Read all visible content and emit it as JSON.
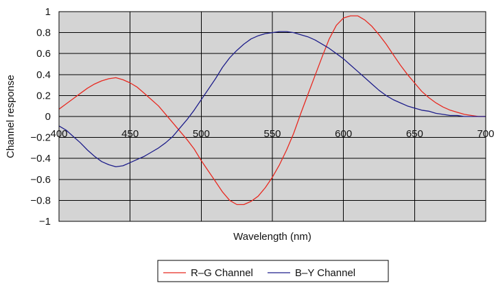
{
  "chart_data": {
    "type": "line",
    "xlabel": "Wavelength (nm)",
    "ylabel": "Channel response",
    "xlim": [
      400,
      700
    ],
    "ylim": [
      -1,
      1
    ],
    "x_ticks": [
      400,
      450,
      500,
      550,
      600,
      650,
      700
    ],
    "y_ticks": [
      1,
      0.8,
      0.6,
      0.4,
      0.2,
      0,
      -0.2,
      -0.4,
      -0.6,
      -0.8,
      -1
    ],
    "y_tick_labels": [
      "1",
      "0.8",
      "0.6",
      "0.4",
      "0.2",
      "0",
      "−0.2",
      "−0.4",
      "−0.6",
      "−0.8",
      "−1"
    ],
    "grid": true,
    "legend_position": "bottom-center",
    "colors": {
      "plot_background": "#d4d4d4",
      "grid": "#000000",
      "rg": "#e8281f",
      "by": "#1c1c8a"
    },
    "series": [
      {
        "name": "R–G Channel",
        "color": "#e8281f",
        "points": [
          [
            400,
            0.07
          ],
          [
            405,
            0.12
          ],
          [
            410,
            0.17
          ],
          [
            415,
            0.22
          ],
          [
            420,
            0.27
          ],
          [
            425,
            0.31
          ],
          [
            430,
            0.34
          ],
          [
            435,
            0.36
          ],
          [
            440,
            0.37
          ],
          [
            445,
            0.35
          ],
          [
            450,
            0.32
          ],
          [
            455,
            0.28
          ],
          [
            460,
            0.22
          ],
          [
            465,
            0.16
          ],
          [
            470,
            0.1
          ],
          [
            475,
            0.02
          ],
          [
            480,
            -0.06
          ],
          [
            485,
            -0.14
          ],
          [
            490,
            -0.22
          ],
          [
            495,
            -0.31
          ],
          [
            500,
            -0.42
          ],
          [
            505,
            -0.52
          ],
          [
            510,
            -0.62
          ],
          [
            515,
            -0.72
          ],
          [
            520,
            -0.8
          ],
          [
            525,
            -0.84
          ],
          [
            530,
            -0.84
          ],
          [
            535,
            -0.81
          ],
          [
            540,
            -0.76
          ],
          [
            545,
            -0.68
          ],
          [
            550,
            -0.58
          ],
          [
            555,
            -0.46
          ],
          [
            560,
            -0.32
          ],
          [
            565,
            -0.16
          ],
          [
            570,
            0.03
          ],
          [
            575,
            0.21
          ],
          [
            580,
            0.39
          ],
          [
            585,
            0.57
          ],
          [
            590,
            0.74
          ],
          [
            595,
            0.87
          ],
          [
            600,
            0.94
          ],
          [
            605,
            0.96
          ],
          [
            610,
            0.96
          ],
          [
            615,
            0.92
          ],
          [
            620,
            0.86
          ],
          [
            625,
            0.78
          ],
          [
            630,
            0.69
          ],
          [
            635,
            0.59
          ],
          [
            640,
            0.49
          ],
          [
            645,
            0.4
          ],
          [
            650,
            0.32
          ],
          [
            655,
            0.24
          ],
          [
            660,
            0.18
          ],
          [
            665,
            0.13
          ],
          [
            670,
            0.09
          ],
          [
            675,
            0.06
          ],
          [
            680,
            0.04
          ],
          [
            685,
            0.02
          ],
          [
            690,
            0.01
          ],
          [
            695,
            0.0
          ],
          [
            700,
            0.0
          ]
        ]
      },
      {
        "name": "B–Y Channel",
        "color": "#1c1c8a",
        "points": [
          [
            400,
            -0.09
          ],
          [
            405,
            -0.13
          ],
          [
            410,
            -0.19
          ],
          [
            415,
            -0.25
          ],
          [
            420,
            -0.32
          ],
          [
            425,
            -0.38
          ],
          [
            430,
            -0.43
          ],
          [
            435,
            -0.46
          ],
          [
            440,
            -0.48
          ],
          [
            445,
            -0.47
          ],
          [
            450,
            -0.44
          ],
          [
            455,
            -0.41
          ],
          [
            460,
            -0.38
          ],
          [
            465,
            -0.34
          ],
          [
            470,
            -0.3
          ],
          [
            475,
            -0.25
          ],
          [
            480,
            -0.19
          ],
          [
            485,
            -0.11
          ],
          [
            490,
            -0.03
          ],
          [
            495,
            0.06
          ],
          [
            500,
            0.16
          ],
          [
            505,
            0.26
          ],
          [
            510,
            0.36
          ],
          [
            515,
            0.47
          ],
          [
            520,
            0.56
          ],
          [
            525,
            0.63
          ],
          [
            530,
            0.69
          ],
          [
            535,
            0.74
          ],
          [
            540,
            0.77
          ],
          [
            545,
            0.79
          ],
          [
            550,
            0.8
          ],
          [
            555,
            0.81
          ],
          [
            560,
            0.81
          ],
          [
            565,
            0.8
          ],
          [
            570,
            0.78
          ],
          [
            575,
            0.76
          ],
          [
            580,
            0.73
          ],
          [
            585,
            0.69
          ],
          [
            590,
            0.65
          ],
          [
            595,
            0.6
          ],
          [
            600,
            0.55
          ],
          [
            605,
            0.49
          ],
          [
            610,
            0.43
          ],
          [
            615,
            0.37
          ],
          [
            620,
            0.31
          ],
          [
            625,
            0.25
          ],
          [
            630,
            0.2
          ],
          [
            635,
            0.16
          ],
          [
            640,
            0.13
          ],
          [
            645,
            0.1
          ],
          [
            650,
            0.08
          ],
          [
            655,
            0.06
          ],
          [
            660,
            0.05
          ],
          [
            665,
            0.03
          ],
          [
            670,
            0.02
          ],
          [
            675,
            0.01
          ],
          [
            680,
            0.01
          ],
          [
            685,
            0.0
          ],
          [
            690,
            0.0
          ],
          [
            695,
            0.0
          ],
          [
            700,
            0.0
          ]
        ]
      }
    ]
  }
}
